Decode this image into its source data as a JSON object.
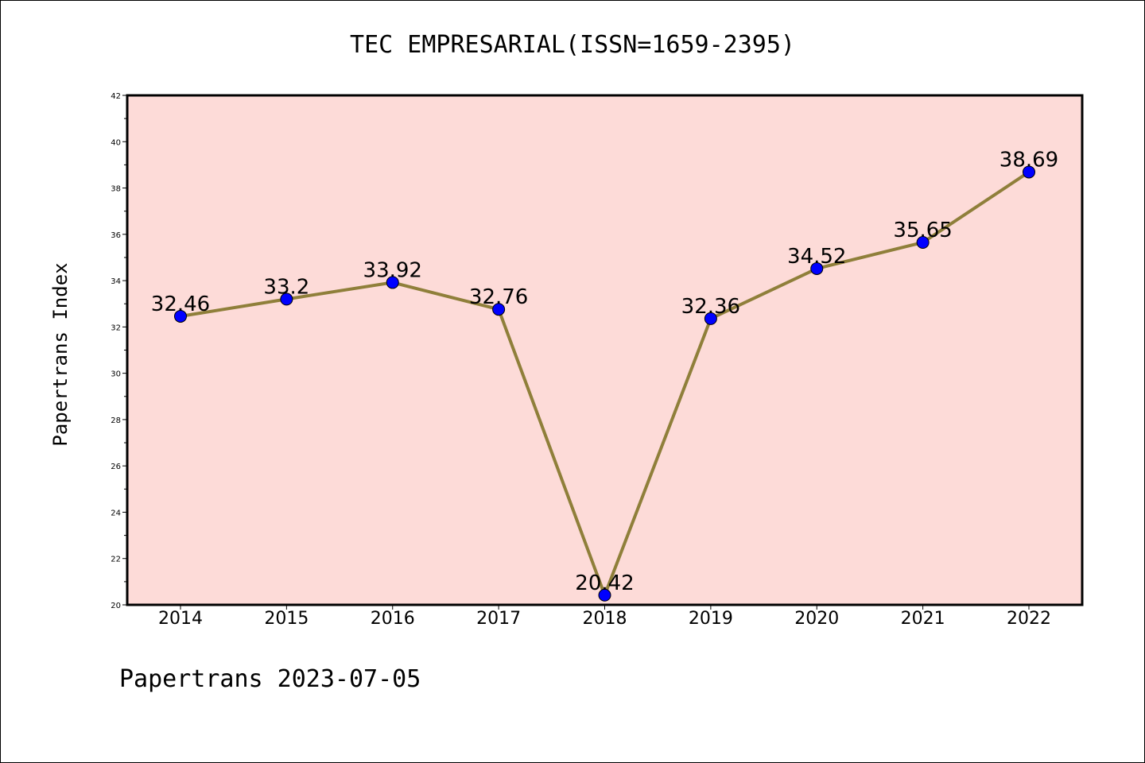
{
  "chart_data": {
    "type": "line",
    "title": "TEC EMPRESARIAL(ISSN=1659-2395)",
    "ylabel": "Papertrans Index",
    "xlabel": "",
    "footer": "Papertrans 2023-07-05",
    "categories": [
      "2014",
      "2015",
      "2016",
      "2017",
      "2018",
      "2019",
      "2020",
      "2021",
      "2022"
    ],
    "series": [
      {
        "values": [
          32.46,
          33.2,
          33.92,
          32.76,
          20.42,
          32.36,
          34.52,
          35.65,
          38.69
        ],
        "labels": [
          "32.46",
          "33.2",
          "33.92",
          "32.76",
          "20.42",
          "32.36",
          "34.52",
          "35.65",
          "38.69"
        ]
      }
    ],
    "ylim": [
      20,
      42
    ],
    "yticks": [
      "20",
      "22",
      "24",
      "26",
      "28",
      "30",
      "32",
      "34",
      "36",
      "38",
      "40",
      "42"
    ],
    "grid": false,
    "colors": {
      "plot_background": "#fddbd8",
      "line": "#8f7f3a",
      "marker": "#0000ff"
    }
  }
}
